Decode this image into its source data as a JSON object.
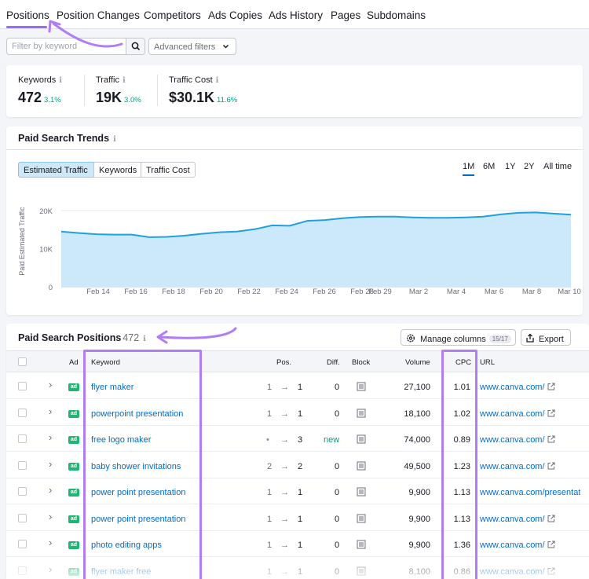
{
  "tabs": [
    "Positions",
    "Position Changes",
    "Competitors",
    "Ads Copies",
    "Ads History",
    "Pages",
    "Subdomains"
  ],
  "filters": {
    "search_placeholder": "Filter by keyword",
    "advanced_label": "Advanced filters"
  },
  "stats": [
    {
      "label": "Keywords",
      "value": "472",
      "delta": "3.1%"
    },
    {
      "label": "Traffic",
      "value": "19K",
      "delta": "3.0%"
    },
    {
      "label": "Traffic Cost",
      "value": "$30.1K",
      "delta": "11.6%"
    }
  ],
  "trends": {
    "title": "Paid Search Trends",
    "metric_tabs": [
      "Estimated Traffic",
      "Keywords",
      "Traffic Cost"
    ],
    "active_metric": "Estimated Traffic",
    "periods": [
      "1M",
      "6M",
      "1Y",
      "2Y",
      "All time"
    ],
    "active_period": "1M"
  },
  "chart_data": {
    "type": "area",
    "title": "",
    "ylabel": "Paid Estimated Traffic",
    "xlabel": "",
    "ylim": [
      0,
      20000
    ],
    "y_ticks": [
      "0",
      "10K",
      "20K"
    ],
    "x_tick_labels": [
      "Feb 14",
      "Feb 16",
      "Feb 18",
      "Feb 20",
      "Feb 22",
      "Feb 24",
      "Feb 26",
      "Feb 28",
      "Feb 29",
      "Mar 2",
      "Mar 4",
      "Mar 6",
      "Mar 8",
      "Mar 10"
    ],
    "series": [
      {
        "values": [
          14500,
          14100,
          13800,
          13700,
          13700,
          13000,
          13100,
          13400,
          13900,
          14300,
          14500,
          15100,
          16100,
          16000,
          17300,
          17500,
          18000,
          18300,
          18400,
          18400,
          18200,
          18100,
          18100,
          18200,
          18400,
          19000,
          19400,
          19500,
          19200,
          18900
        ]
      }
    ],
    "color": "#1fa1e0",
    "fill": "#cbe9fa",
    "grid": true
  },
  "table": {
    "title": "Paid Search Positions",
    "count": "472",
    "manage_label": "Manage columns",
    "manage_badge": "15/17",
    "export_label": "Export",
    "headers": {
      "ad": "Ad",
      "keyword": "Keyword",
      "pos": "Pos.",
      "diff": "Diff.",
      "block": "Block",
      "volume": "Volume",
      "cpc": "CPC",
      "url": "URL"
    },
    "rows": [
      {
        "keyword": "flyer maker",
        "pos_from": "1",
        "pos_to": "1",
        "diff": "0",
        "volume": "27,100",
        "cpc": "1.01",
        "url": "www.canva.com/"
      },
      {
        "keyword": "powerpoint presentation",
        "pos_from": "1",
        "pos_to": "1",
        "diff": "0",
        "volume": "18,100",
        "cpc": "1.02",
        "url": "www.canva.com/"
      },
      {
        "keyword": "free logo maker",
        "pos_from": "•",
        "pos_to": "3",
        "diff": "new",
        "volume": "74,000",
        "cpc": "0.89",
        "url": "www.canva.com/"
      },
      {
        "keyword": "baby shower invitations",
        "pos_from": "2",
        "pos_to": "2",
        "diff": "0",
        "volume": "49,500",
        "cpc": "1.23",
        "url": "www.canva.com/"
      },
      {
        "keyword": "power point presentation",
        "pos_from": "1",
        "pos_to": "1",
        "diff": "0",
        "volume": "9,900",
        "cpc": "1.13",
        "url": "www.canva.com/presentat"
      },
      {
        "keyword": "power point presentation",
        "pos_from": "1",
        "pos_to": "1",
        "diff": "0",
        "volume": "9,900",
        "cpc": "1.13",
        "url": "www.canva.com/"
      },
      {
        "keyword": "photo editing apps",
        "pos_from": "1",
        "pos_to": "1",
        "diff": "0",
        "volume": "9,900",
        "cpc": "1.36",
        "url": "www.canva.com/"
      },
      {
        "keyword": "flyer maker free",
        "pos_from": "1",
        "pos_to": "1",
        "diff": "0",
        "volume": "8,100",
        "cpc": "0.86",
        "url": "www.canva.com/"
      }
    ]
  },
  "colors": {
    "accent": "#006dca",
    "highlight": "#b07ef2",
    "positive": "#009f81",
    "ad_badge": "#1fb573"
  },
  "icons": [
    "search-icon",
    "chevron-down-icon",
    "info-icon",
    "gear-icon",
    "export-icon",
    "external-link-icon",
    "chevron-right-icon",
    "arrow-right-icon",
    "block-icon"
  ]
}
